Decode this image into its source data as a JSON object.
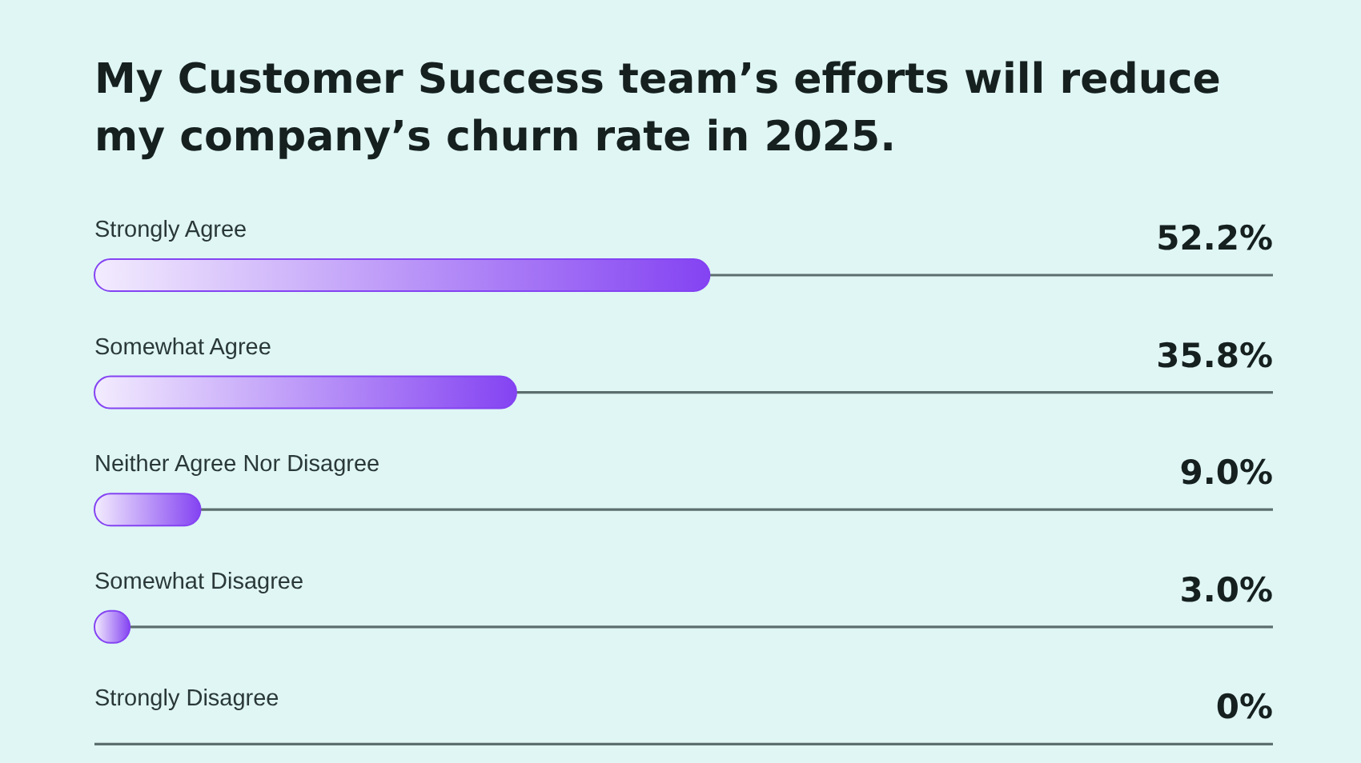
{
  "chart_data": {
    "type": "bar",
    "orientation": "horizontal",
    "title": "My Customer Success team’s efforts will reduce my company’s churn rate in 2025.",
    "categories": [
      "Strongly Agree",
      "Somewhat Agree",
      "Neither Agree Nor Disagree",
      "Somewhat Disagree",
      "Strongly Disagree"
    ],
    "values": [
      52.2,
      35.8,
      9.0,
      3.0,
      0
    ],
    "value_labels": [
      "52.2%",
      "35.8%",
      "9.0%",
      "3.0%",
      "0%"
    ],
    "color": "#8443f2",
    "xlim": [
      0,
      100
    ],
    "tick_labels": "y"
  }
}
